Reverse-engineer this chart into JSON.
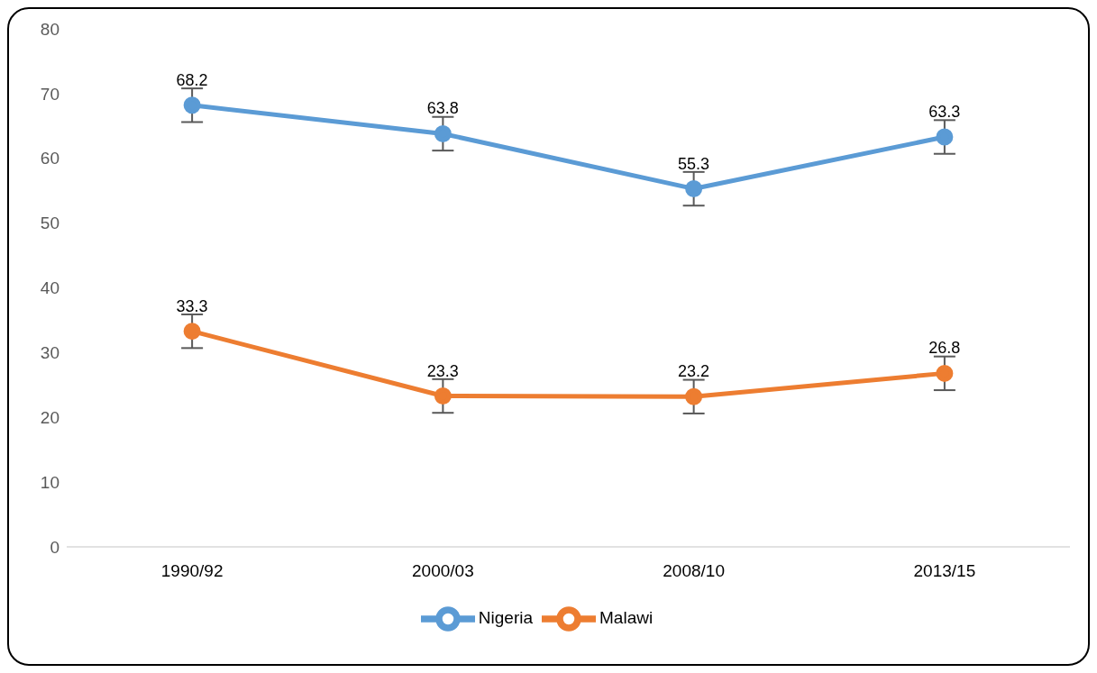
{
  "chart_data": {
    "type": "line",
    "categories": [
      "1990/92",
      "2000/03",
      "2008/10",
      "2013/15"
    ],
    "series": [
      {
        "name": "Nigeria",
        "color": "#5b9bd5",
        "values": [
          68.2,
          63.8,
          55.3,
          63.3
        ],
        "errors": [
          2.6,
          2.6,
          2.6,
          2.6
        ]
      },
      {
        "name": "Malawi",
        "color": "#ed7d31",
        "values": [
          33.3,
          23.3,
          23.2,
          26.8
        ],
        "errors": [
          2.6,
          2.6,
          2.6,
          2.6
        ]
      }
    ],
    "ylim": [
      0,
      80
    ],
    "yticks": [
      0,
      10,
      20,
      30,
      40,
      50,
      60,
      70,
      80
    ],
    "data_labels": true,
    "legend": "bottom",
    "marker": "circle",
    "line_style": "solid"
  }
}
